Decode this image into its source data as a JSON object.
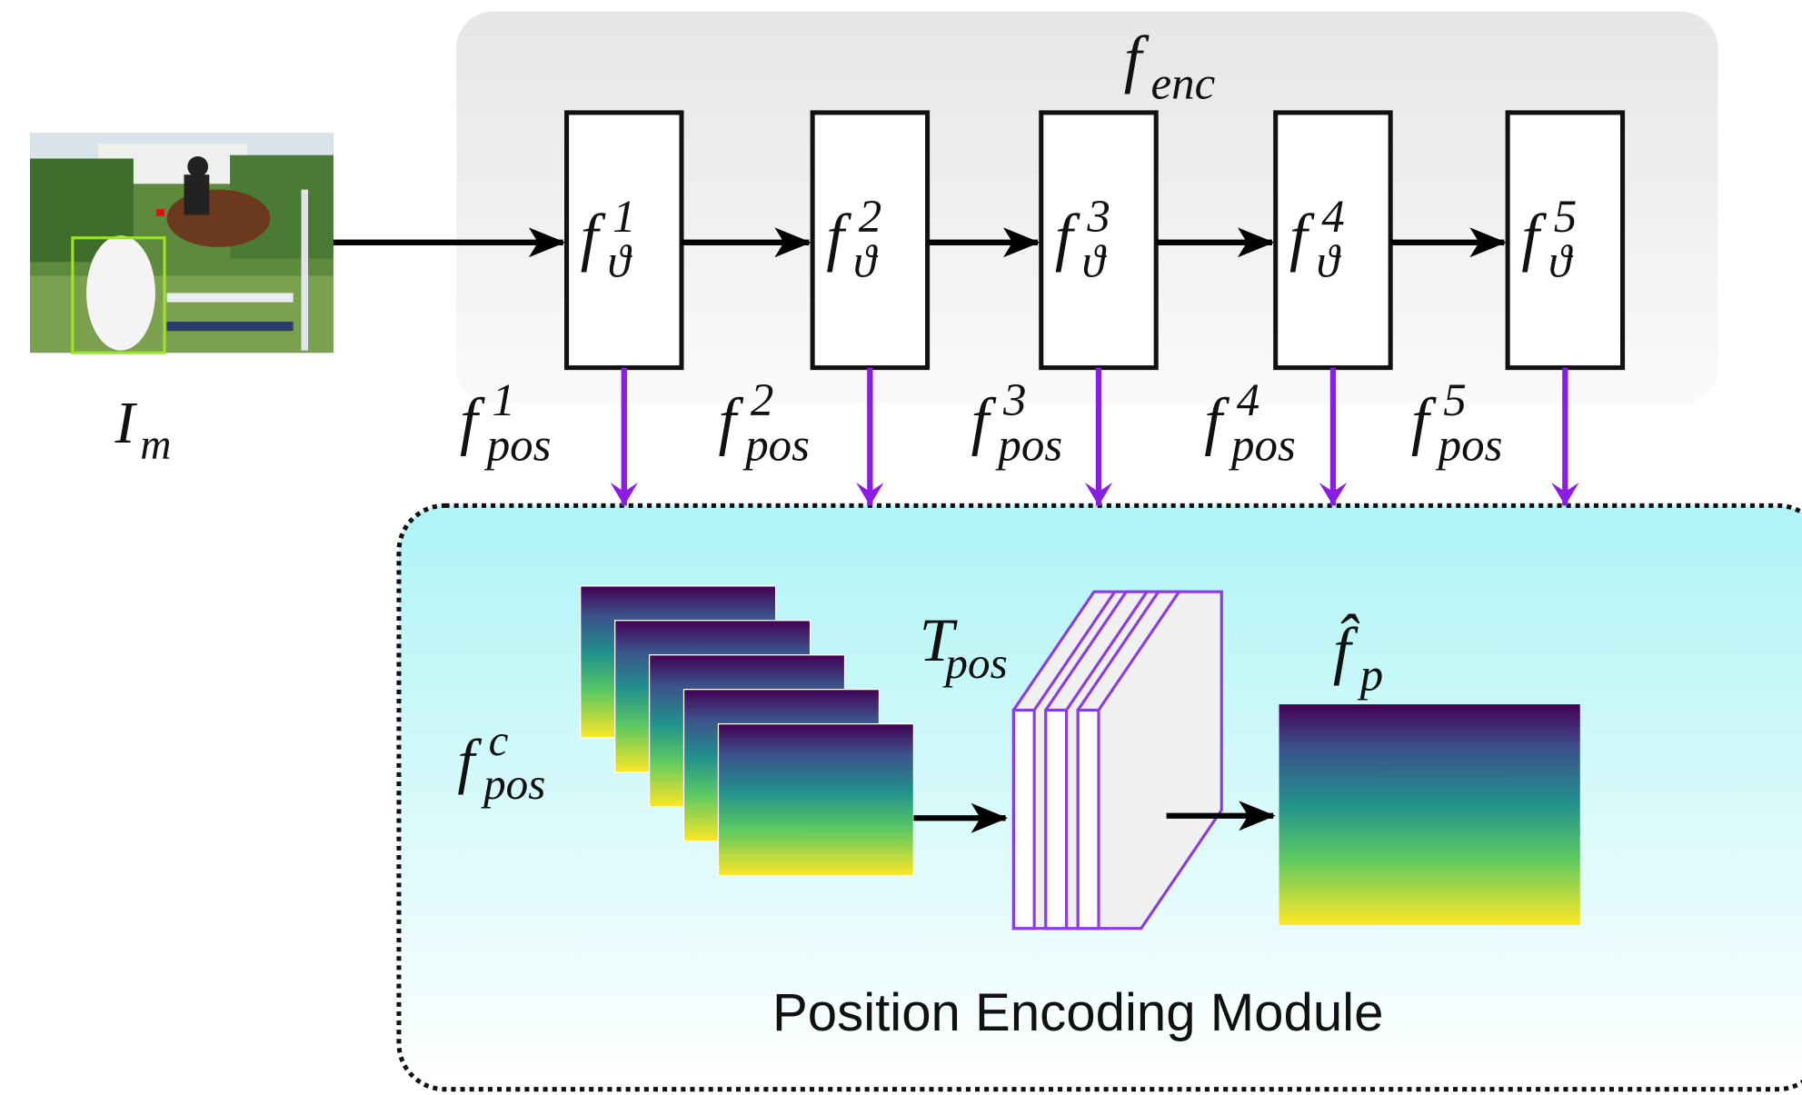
{
  "input": {
    "label": {
      "base": "I",
      "sub": "m"
    }
  },
  "encoder": {
    "label": {
      "base": "f",
      "sub": "enc"
    },
    "blocks": [
      {
        "base": "f",
        "sub": "ϑ",
        "sup": "1"
      },
      {
        "base": "f",
        "sub": "ϑ",
        "sup": "2"
      },
      {
        "base": "f",
        "sub": "ϑ",
        "sup": "3"
      },
      {
        "base": "f",
        "sub": "ϑ",
        "sup": "4"
      },
      {
        "base": "f",
        "sub": "ϑ",
        "sup": "5"
      }
    ]
  },
  "pos_features": [
    {
      "base": "f",
      "sub": "pos",
      "sup": "1"
    },
    {
      "base": "f",
      "sub": "pos",
      "sup": "2"
    },
    {
      "base": "f",
      "sub": "pos",
      "sup": "3"
    },
    {
      "base": "f",
      "sub": "pos",
      "sup": "4"
    },
    {
      "base": "f",
      "sub": "pos",
      "sup": "5"
    }
  ],
  "module": {
    "title": "Position Encoding Module",
    "concat": {
      "base": "f",
      "sub": "pos",
      "sup": "c"
    },
    "transform": {
      "base": "T",
      "sub": "pos"
    },
    "output": {
      "base": "f̂",
      "sub": "p"
    }
  }
}
